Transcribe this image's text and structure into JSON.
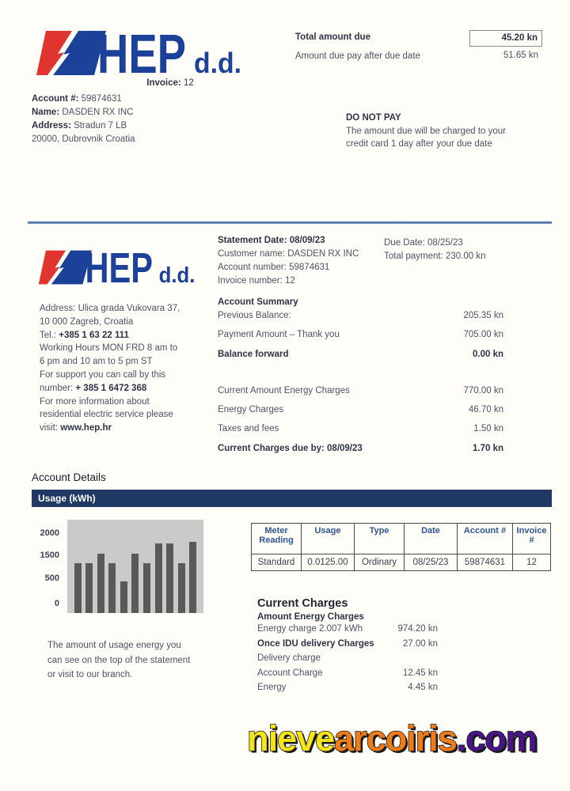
{
  "brand": {
    "name": "HEP",
    "suffix": "d.d."
  },
  "header": {
    "invoice_label": "Invoice:",
    "invoice_value": "12",
    "account_label": "Account #:",
    "account_value": "59874631",
    "name_label": "Name:",
    "name_value": "DASDEN RX INC",
    "address_label": "Address:",
    "address_value": "Stradun 7 LB",
    "address_line2": "20000, Dubrovnik Croatia",
    "total_due_label": "Total amount due",
    "total_due_value": "45.20 kn",
    "after_due_label": "Amount due pay after due date",
    "after_due_value": "51.65 kn",
    "do_not_pay_title": "DO NOT PAY",
    "do_not_pay_line1": "The amount due will be charged to your",
    "do_not_pay_line2": "credit card 1 day after your due date"
  },
  "statement": {
    "date": "Statement Date: 08/09/23",
    "customer": "Customer name: DASDEN RX INC",
    "account": "Account number: 59874631",
    "invoice": "Invoice number: 12",
    "due_date": "Due Date: 08/25/23",
    "total_payment": "Total payment: 230.00 kn"
  },
  "company": {
    "line1": "Address: Ulica grada Vukovara 37,",
    "line2": "10 000  Zagreb, Croatia",
    "line3_pre": "Tel.:  ",
    "line3_bold": "+385 1 63 22 111",
    "line4": "Working Hours  MON FRD 8 am to",
    "line5": "6 pm and 10 am to 5 pm ST",
    "line6": "For support you can call by this",
    "line7_pre": "number: ",
    "line7_bold": "+ 385 1 6472 368",
    "line8": "For more information about",
    "line9": "residential electric service please",
    "line10_pre": "visit: ",
    "line10_bold": "www.hep.hr"
  },
  "summary": {
    "title": "Account Summary",
    "rows": [
      {
        "label": "Previous Balance:",
        "value": "205.35 kn"
      },
      {
        "label": "Payment Amount – Thank you",
        "value": "705.00 kn"
      },
      {
        "label": "Balance forward",
        "value": "0.00 kn"
      },
      {
        "label": "Current Amount Energy Charges",
        "value": "770.00 kn"
      },
      {
        "label": "Energy Charges",
        "value": "46.70 kn"
      },
      {
        "label": "Taxes and fees",
        "value": "1.50 kn"
      },
      {
        "label": "Current Charges due by: 08/09/23",
        "value": "1.70 kn"
      }
    ]
  },
  "details": {
    "title": "Account Details",
    "usage_header": "Usage (kWh)",
    "note_line1": "The amount of usage energy you",
    "note_line2": "can see on the top of the statement",
    "note_line3": "or visit to our branch."
  },
  "meter_table": {
    "headers": [
      "Meter Reading",
      "Usage",
      "Type",
      "Date",
      "Account #",
      "Invoice #"
    ],
    "row": [
      "Standard",
      "0.0125.00",
      "Ordinary",
      "08/25/23",
      "59874631",
      "12"
    ]
  },
  "charges": {
    "title": "Current Charges",
    "subtitle": "Amount Energy Charges",
    "rows": [
      {
        "label": "Energy charge 2.007 kWh",
        "value": "974.20 kn"
      },
      {
        "label": "Once IDU delivery Charges",
        "value": "27.00 kn"
      },
      {
        "label": "Delivery charge",
        "value": ""
      },
      {
        "label": "Account Charge",
        "value": "12.45 kn"
      },
      {
        "label": "Energy",
        "value": "4.45 kn"
      }
    ]
  },
  "watermark": {
    "part1": "nieve",
    "part2": "arcoiris",
    "part3": ".com"
  },
  "colors": {
    "brand_red": "#e0352f",
    "brand_blue": "#1b4298",
    "navy_bar": "#1f3864",
    "table_header_blue": "#2e5597",
    "divider": "#4f81a8",
    "bar_gray": "#595959",
    "plot_bg": "#cacaca",
    "watermark_yellow": "#f5e418",
    "watermark_orange": "#f07c18",
    "watermark_purple": "#491586"
  },
  "chart_data": {
    "type": "bar",
    "title": "Usage (kWh)",
    "x": [
      1,
      2,
      3,
      4,
      5,
      6,
      7,
      8,
      9,
      10,
      11
    ],
    "values": [
      1250,
      1250,
      1500,
      1250,
      800,
      1500,
      1250,
      1750,
      1750,
      1250,
      1800
    ],
    "ylim": [
      0,
      2350
    ],
    "yticks": [
      "2000",
      "1500",
      "500",
      "0"
    ],
    "xlabel": "",
    "ylabel": "kWh",
    "grid": false,
    "legend": "none",
    "bar_color": "#595959",
    "plot_bg": "#cacaca"
  }
}
